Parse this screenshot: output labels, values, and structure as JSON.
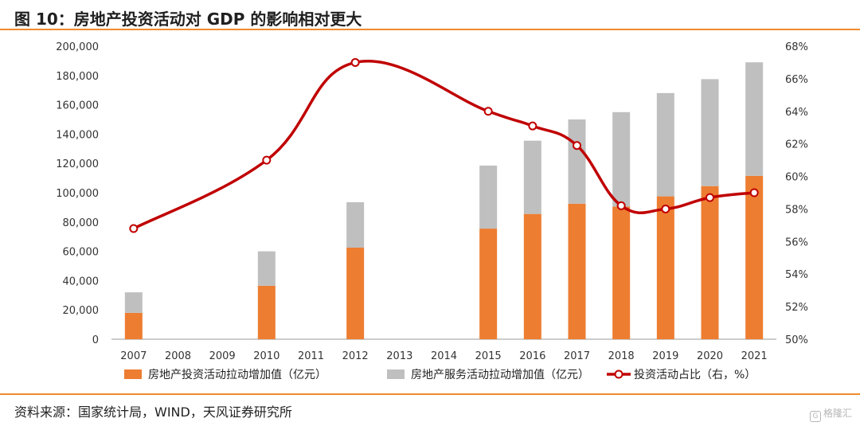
{
  "header": {
    "title": "图 10：房地产投资活动对 GDP 的影响相对更大"
  },
  "footer": {
    "source": "资料来源：国家统计局，WIND，天风证券研究所",
    "watermark": "格隆汇"
  },
  "colors": {
    "bar_invest": "#ed7d31",
    "bar_service": "#bfbfbf",
    "line": "#c00000",
    "accent_rule": "#f08a2e"
  },
  "chart_data": {
    "type": "bar",
    "categories": [
      "2007",
      "2008",
      "2009",
      "2010",
      "2011",
      "2012",
      "2013",
      "2014",
      "2015",
      "2016",
      "2017",
      "2018",
      "2019",
      "2020",
      "2021"
    ],
    "y_left": {
      "min": 0,
      "max": 200000,
      "ticks": [
        "200,000",
        "180,000",
        "160,000",
        "140,000",
        "120,000",
        "100,000",
        "80,000",
        "60,000",
        "40,000",
        "20,000",
        "0"
      ]
    },
    "y_right": {
      "min": 50,
      "max": 68,
      "ticks": [
        "68%",
        "66%",
        "64%",
        "62%",
        "60%",
        "58%",
        "56%",
        "54%",
        "52%",
        "50%"
      ]
    },
    "stacked": true,
    "series": [
      {
        "name": "房地产投资活动拉动增加值（亿元）",
        "type": "bar",
        "axis": "left",
        "values": [
          18000,
          null,
          null,
          36500,
          null,
          62500,
          null,
          null,
          75500,
          85500,
          92500,
          90500,
          97500,
          104500,
          111500
        ]
      },
      {
        "name": "房地产服务活动拉动增加值（亿元）",
        "type": "bar",
        "axis": "left",
        "values": [
          14000,
          null,
          null,
          23500,
          null,
          31000,
          null,
          null,
          43000,
          50000,
          57500,
          64500,
          70500,
          73000,
          77500
        ]
      },
      {
        "name": "投资活动占比（右，%）",
        "type": "line",
        "axis": "right",
        "smooth": true,
        "values": [
          56.8,
          null,
          null,
          61.0,
          null,
          67.0,
          null,
          null,
          64.0,
          63.1,
          61.9,
          58.2,
          58.0,
          58.7,
          59.0
        ]
      }
    ],
    "legend_position": "bottom",
    "grid": false
  }
}
